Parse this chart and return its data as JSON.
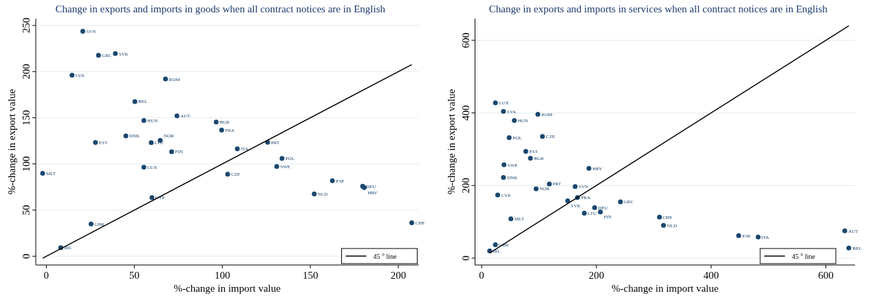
{
  "chart_data": [
    {
      "type": "scatter",
      "title": "Change in exports and imports in goods when all contract notices are in English",
      "xlabel": "%-change in import value",
      "ylabel": "%-change in export value",
      "xlim": [
        -6,
        211.5
      ],
      "ylim": [
        -9.5,
        257.5
      ],
      "xticks": [
        0,
        50,
        100,
        150,
        200
      ],
      "yticks": [
        0,
        50,
        100,
        150,
        200,
        250
      ],
      "grid": "y",
      "legend": "bottom right",
      "series": [
        {
          "marker": "circle",
          "color": "#1a476f",
          "x": [
            20.7,
            29.6,
            39.2,
            14.6,
            67.7,
            50.3,
            74.2,
            55.4,
            45.2,
            27.9,
            59.6,
            64.7,
            71.2,
            55.4,
            -2.1,
            60.0,
            25.4,
            8.2,
            96.5,
            99.6,
            125.7,
            108.5,
            133.9,
            130.9,
            103.0,
            162.5,
            179.7,
            180.6,
            152.2,
            207.6
          ],
          "values": [
            243.8,
            217.8,
            219.5,
            196.2,
            192.0,
            167.6,
            152.0,
            147.1,
            130.4,
            123.3,
            123.0,
            125.5,
            113.3,
            96.5,
            89.8,
            63.5,
            35.0,
            9.2,
            145.3,
            136.7,
            123.5,
            116.3,
            105.9,
            97.2,
            88.8,
            81.8,
            75.9,
            74.4,
            67.5,
            36.2
          ]
        },
        {
          "type": "line",
          "name": "45 ° line",
          "color": "#000000",
          "x": [
            -2.1,
            207.6
          ],
          "values": [
            -2.1,
            207.6
          ]
        }
      ],
      "annotations": [
        {
          "text": "SVN",
          "x": 20.7,
          "y": 243.8
        },
        {
          "text": "GRC",
          "x": 29.6,
          "y": 217.8
        },
        {
          "text": "SVK",
          "x": 39.2,
          "y": 219.5
        },
        {
          "text": "LVA",
          "x": 14.6,
          "y": 196.2
        },
        {
          "text": "ROM",
          "x": 67.7,
          "y": 192.0
        },
        {
          "text": "BEL",
          "x": 50.3,
          "y": 167.6
        },
        {
          "text": "AUT",
          "x": 74.2,
          "y": 152.0
        },
        {
          "text": "HUN",
          "x": 55.4,
          "y": 147.1
        },
        {
          "text": "DNK",
          "x": 45.2,
          "y": 130.4
        },
        {
          "text": "EST",
          "x": 27.9,
          "y": 123.3
        },
        {
          "text": "LTU",
          "x": 59.6,
          "y": 123.0
        },
        {
          "text": "NOR",
          "x": 64.7,
          "y": 125.5
        },
        {
          "text": "FIN",
          "x": 71.2,
          "y": 113.3
        },
        {
          "text": "LUX",
          "x": 55.4,
          "y": 96.5
        },
        {
          "text": "MLT",
          "x": -2.1,
          "y": 89.8
        },
        {
          "text": "CYP",
          "x": 60.0,
          "y": 63.5
        },
        {
          "text": "GBR",
          "x": 25.4,
          "y": 35.0
        },
        {
          "text": "IRL",
          "x": 8.2,
          "y": 9.2
        },
        {
          "text": "BGR",
          "x": 96.5,
          "y": 145.3
        },
        {
          "text": "FRA",
          "x": 99.6,
          "y": 136.7
        },
        {
          "text": "PRT",
          "x": 125.7,
          "y": 123.5
        },
        {
          "text": "ITA",
          "x": 108.5,
          "y": 116.3
        },
        {
          "text": "POL",
          "x": 133.9,
          "y": 105.9
        },
        {
          "text": "SWE",
          "x": 130.9,
          "y": 97.2
        },
        {
          "text": "CZE",
          "x": 103.0,
          "y": 88.8
        },
        {
          "text": "ESP",
          "x": 162.5,
          "y": 81.8
        },
        {
          "text": "DEU",
          "x": 179.7,
          "y": 75.9
        },
        {
          "text": "HRV",
          "x": 180.6,
          "y": 74.4
        },
        {
          "text": "NLD",
          "x": 152.2,
          "y": 67.5
        },
        {
          "text": "CHE",
          "x": 207.6,
          "y": 36.2
        }
      ]
    },
    {
      "type": "scatter",
      "title": "Change in exports and imports in services when all contract notices are in English",
      "xlabel": "%-change in import value",
      "ylabel": "%-change in export value",
      "xlim": [
        -11.5,
        651
      ],
      "ylim": [
        -19,
        660
      ],
      "xticks": [
        0,
        200,
        400,
        600
      ],
      "yticks": [
        0,
        200,
        400,
        600
      ],
      "grid": "y",
      "legend": "bottom right",
      "series": [
        {
          "marker": "circle",
          "color": "#1a476f",
          "x": [
            24,
            38,
            98,
            57,
            48,
            106,
            77,
            85,
            39,
            187,
            38,
            118,
            163,
            95,
            28,
            167,
            150,
            242,
            197,
            207,
            179,
            51,
            24,
            14,
            310,
            317,
            448,
            482,
            633,
            640
          ],
          "values": [
            428,
            404,
            396,
            379,
            332,
            335,
            294,
            275,
            257,
            247,
            222,
            204,
            197,
            191,
            174,
            167,
            158,
            155,
            139,
            127,
            124,
            108,
            37,
            20,
            113,
            90,
            62,
            58,
            75,
            28
          ]
        },
        {
          "type": "line",
          "name": "45 ° line",
          "color": "#000000",
          "x": [
            14,
            640
          ],
          "values": [
            14,
            640
          ]
        }
      ],
      "annotations": [
        {
          "text": "LUX",
          "x": 24.2,
          "y": 428.2
        },
        {
          "text": "LVA",
          "x": 38.5,
          "y": 403.6
        },
        {
          "text": "ROM",
          "x": 98.3,
          "y": 396.0
        },
        {
          "text": "HUN",
          "x": 56.7,
          "y": 379.0
        },
        {
          "text": "POL",
          "x": 48.3,
          "y": 331.7
        },
        {
          "text": "CZE",
          "x": 106.3,
          "y": 334.9
        },
        {
          "text": "EST",
          "x": 76.9,
          "y": 293.9
        },
        {
          "text": "BGR",
          "x": 85.2,
          "y": 275.0
        },
        {
          "text": "SWE",
          "x": 39.3,
          "y": 256.8
        },
        {
          "text": "HRV",
          "x": 187.3,
          "y": 246.6
        },
        {
          "text": "DNK",
          "x": 38.5,
          "y": 222.0
        },
        {
          "text": "PRT",
          "x": 117.9,
          "y": 204.4
        },
        {
          "text": "SVN",
          "x": 163.1,
          "y": 197.4
        },
        {
          "text": "NOR",
          "x": 94.8,
          "y": 191.1
        },
        {
          "text": "CYP",
          "x": 28.1,
          "y": 173.5
        },
        {
          "text": "FRA",
          "x": 167.4,
          "y": 167.1
        },
        {
          "text": "SVK",
          "x": 149.5,
          "y": 157.6
        },
        {
          "text": "GRC",
          "x": 241.7,
          "y": 155.2
        },
        {
          "text": "DEU",
          "x": 196.8,
          "y": 138.7
        },
        {
          "text": "FIN",
          "x": 206.7,
          "y": 127.3
        },
        {
          "text": "LTU",
          "x": 178.6,
          "y": 124.2
        },
        {
          "text": "MLT",
          "x": 51.2,
          "y": 108.4
        },
        {
          "text": "GBR",
          "x": 23.8,
          "y": 36.5
        },
        {
          "text": "IRL",
          "x": 13.5,
          "y": 20.2
        },
        {
          "text": "CHE",
          "x": 309.5,
          "y": 113.0
        },
        {
          "text": "NLD",
          "x": 317.4,
          "y": 89.5
        },
        {
          "text": "ESP",
          "x": 448.3,
          "y": 61.7
        },
        {
          "text": "ITA",
          "x": 481.7,
          "y": 57.9
        },
        {
          "text": "AUT",
          "x": 632.9,
          "y": 75.1
        },
        {
          "text": "BEL",
          "x": 640.5,
          "y": 27.8
        }
      ]
    }
  ]
}
